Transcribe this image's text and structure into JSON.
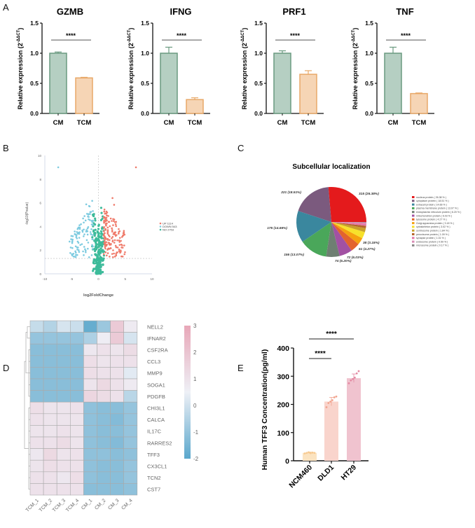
{
  "panel_labels": {
    "a": "A",
    "b": "B",
    "c": "C",
    "d": "D",
    "e": "E"
  },
  "chart_data": [
    {
      "type": "bar",
      "panel": "A",
      "title": "GZMB",
      "ylabel_main": "Relative expression (2",
      "ylabel_sup": "-ΔΔCT",
      "ylabel_end": ")",
      "categories": [
        "CM",
        "TCM"
      ],
      "values": [
        1.0,
        0.59
      ],
      "errors": [
        0.02,
        0.01
      ],
      "ylim": [
        0,
        1.5
      ],
      "yticks": [
        "0.0",
        "0.5",
        "1.0",
        "1.5"
      ],
      "significance": "****"
    },
    {
      "type": "bar",
      "panel": "A",
      "title": "IFNG",
      "ylabel_main": "Relative expression (2",
      "ylabel_sup": "-ΔΔCT",
      "ylabel_end": ")",
      "categories": [
        "CM",
        "TCM"
      ],
      "values": [
        1.0,
        0.23
      ],
      "errors": [
        0.1,
        0.03
      ],
      "ylim": [
        0,
        1.5
      ],
      "yticks": [
        "0.0",
        "0.5",
        "1.0",
        "1.5"
      ],
      "significance": "****"
    },
    {
      "type": "bar",
      "panel": "A",
      "title": "PRF1",
      "ylabel_main": "Relative expression (2",
      "ylabel_sup": "-ΔΔCT",
      "ylabel_end": ")",
      "categories": [
        "CM",
        "TCM"
      ],
      "values": [
        1.0,
        0.65
      ],
      "errors": [
        0.04,
        0.06
      ],
      "ylim": [
        0,
        1.5
      ],
      "yticks": [
        "0.0",
        "0.5",
        "1.0",
        "1.5"
      ],
      "significance": "****"
    },
    {
      "type": "bar",
      "panel": "A",
      "title": "TNF",
      "ylabel_main": "Relative expression (2",
      "ylabel_sup": "-ΔΔCT",
      "ylabel_end": ")",
      "categories": [
        "CM",
        "TCM"
      ],
      "values": [
        1.0,
        0.33
      ],
      "errors": [
        0.1,
        0.01
      ],
      "ylim": [
        0,
        1.5
      ],
      "yticks": [
        "0.0",
        "0.5",
        "1.0",
        "1.5"
      ],
      "significance": "****"
    },
    {
      "type": "scatter",
      "panel": "B",
      "xlabel": "log2FoldChange",
      "ylabel": "-log10(Pvalue)",
      "xlim": [
        -10,
        10
      ],
      "ylim": [
        0,
        10
      ],
      "xticks": [
        "-10",
        "-5",
        "0",
        "5",
        "10"
      ],
      "yticks": [
        "0",
        "2",
        "4",
        "6",
        "8",
        "10"
      ],
      "pvalue_threshold_line": 1.3,
      "fc_threshold_line": 0,
      "legend": [
        {
          "label": "UP 1114",
          "color": "#ef7b6b"
        },
        {
          "label": "DOWN 543",
          "color": "#7ecbe0"
        },
        {
          "label": "NO 2753",
          "color": "#3dbb9a"
        }
      ],
      "legend_position": "right",
      "outliers": [
        {
          "x": -7.5,
          "y": 9.0,
          "group": "DOWN"
        },
        {
          "x": 7.0,
          "y": 9.0,
          "group": "UP"
        }
      ]
    },
    {
      "type": "pie",
      "panel": "C",
      "title": "Subcellular localization",
      "slices": [
        {
          "label": "nucleus protein  ( 26.38 % )",
          "count": 315,
          "pct": 26.38,
          "color": "#e41a1c",
          "callout": "315 (26.38%)"
        },
        {
          "label": "cytoplasm protein  ( 18.51 % )",
          "count": 221,
          "pct": 18.51,
          "color": "#7b5a7e",
          "callout": "221 (18.51%)"
        },
        {
          "label": "extracell protein  ( 14.66 % )",
          "count": 175,
          "pct": 14.66,
          "color": "#3a879e",
          "callout": "175 (14.66%)"
        },
        {
          "label": "plasma membrane protein  ( 13.07 % )",
          "count": 156,
          "pct": 13.07,
          "color": "#4aa75a",
          "callout": "156 (13.07%)"
        },
        {
          "label": "endoplasmic reticulum protein  ( 6.20 % )",
          "count": 74,
          "pct": 6.2,
          "color": "#6e7f72",
          "callout": "74 (6.20%)"
        },
        {
          "label": "mitochondrion protein  ( 6.03 % )",
          "count": 72,
          "pct": 6.03,
          "color": "#a251a3",
          "callout": "72 (6.03%)"
        },
        {
          "label": "lysosome protein  ( 4.27 % )",
          "count": 51,
          "pct": 4.27,
          "color": "#e3632d",
          "callout": "51 (4.27%)"
        },
        {
          "label": "Golgi apparatus protein  ( 3.18 % )",
          "count": 38,
          "pct": 3.18,
          "color": "#f5a10f",
          "callout": "38 (3.18%)"
        },
        {
          "label": "cytoskeleton protein  ( 3.02 % )",
          "pct": 3.02,
          "color": "#f7e12b"
        },
        {
          "label": "centrosome protein  ( 1.84 % )",
          "pct": 1.84,
          "color": "#c9a02a"
        },
        {
          "label": "peroxisome protein  ( 1.09 % )",
          "pct": 1.09,
          "color": "#b5652b"
        },
        {
          "label": "synapse protein  ( 1.01 % )",
          "pct": 1.01,
          "color": "#e377a8"
        },
        {
          "label": "endosome protein  ( 0.59 % )",
          "pct": 0.59,
          "color": "#d98bb5"
        },
        {
          "label": "microsome protein  ( 0.17 % )",
          "pct": 0.17,
          "color": "#888888"
        }
      ],
      "legend_position": "right"
    },
    {
      "type": "heatmap",
      "panel": "D",
      "columns": [
        "TCM_1",
        "TCM_2",
        "TCM_3",
        "TCM_4",
        "CM_1",
        "CM_2",
        "CM_3",
        "CM_4"
      ],
      "rows": [
        "NELL2",
        "IFNAR2",
        "CSF2RA",
        "CCL3",
        "MMP9",
        "SOGA1",
        "PDGFB",
        "CHI3L1",
        "CALCA",
        "IL17C",
        "RARRES2",
        "TFF3",
        "CX3CL1",
        "TCN2",
        "CST7"
      ],
      "values": [
        [
          -0.2,
          -0.5,
          0.1,
          -0.1,
          -1.8,
          -0.9,
          1.8,
          0.7
        ],
        [
          -1.0,
          -1.0,
          -1.0,
          -1.0,
          -0.6,
          0.6,
          1.8,
          0.1
        ],
        [
          -1.2,
          -1.2,
          -1.2,
          -1.2,
          0.8,
          1.0,
          0.9,
          1.2
        ],
        [
          -1.2,
          -1.2,
          -1.2,
          -1.2,
          1.1,
          0.9,
          1.0,
          1.0
        ],
        [
          -1.2,
          -1.2,
          -1.2,
          -1.2,
          1.1,
          1.0,
          1.0,
          0.3
        ],
        [
          -1.2,
          -1.2,
          -1.2,
          -1.2,
          0.9,
          1.3,
          1.0,
          0.7
        ],
        [
          -1.2,
          -1.2,
          -1.2,
          -1.2,
          1.4,
          1.2,
          1.0,
          -0.4
        ],
        [
          1.1,
          0.9,
          0.9,
          1.0,
          -1.1,
          -1.2,
          -1.2,
          -1.0
        ],
        [
          1.0,
          0.9,
          0.9,
          0.9,
          -1.1,
          -1.2,
          -1.3,
          -1.0
        ],
        [
          0.9,
          0.9,
          1.0,
          0.9,
          -1.1,
          -1.2,
          -1.2,
          -1.0
        ],
        [
          1.0,
          1.0,
          1.2,
          0.9,
          -1.1,
          -1.2,
          -1.3,
          -1.0
        ],
        [
          0.8,
          1.3,
          0.9,
          1.0,
          -1.1,
          -1.1,
          -1.2,
          -1.1
        ],
        [
          0.9,
          1.1,
          1.0,
          1.0,
          -1.1,
          -1.2,
          -1.2,
          -1.0
        ],
        [
          1.0,
          1.0,
          0.8,
          1.1,
          -1.1,
          -1.2,
          -1.2,
          -1.0
        ],
        [
          1.0,
          1.0,
          1.0,
          1.0,
          -1.2,
          -1.2,
          -1.2,
          -1.1
        ]
      ],
      "colorbar": {
        "min": -2,
        "max": 3,
        "ticks": [
          "3",
          "2",
          "1",
          "0",
          "-1",
          "-2"
        ],
        "low_color": "#5aa7cc",
        "mid_color": "#eef0f6",
        "high_color": "#e8a7b8"
      },
      "row_dendrogram": true
    },
    {
      "type": "bar",
      "panel": "E",
      "ylabel": "Human TFF3 Concentration(pg/ml)",
      "categories": [
        "NCM460",
        "DLD1",
        "HT29"
      ],
      "values": [
        28,
        210,
        293
      ],
      "errors": [
        3,
        15,
        15
      ],
      "points": [
        [
          26,
          28,
          30,
          27,
          29,
          28
        ],
        [
          190,
          205,
          210,
          215,
          225,
          228
        ],
        [
          275,
          285,
          290,
          295,
          310,
          318
        ]
      ],
      "colors": [
        "#fbe3c0",
        "#f9d4cc",
        "#f0c3cf"
      ],
      "ylim": [
        0,
        400
      ],
      "yticks": [
        "0",
        "100",
        "200",
        "300",
        "400"
      ],
      "comparisons": [
        {
          "from": "NCM460",
          "to": "DLD1",
          "label": "****"
        },
        {
          "from": "NCM460",
          "to": "HT29",
          "label": "****"
        }
      ]
    }
  ]
}
